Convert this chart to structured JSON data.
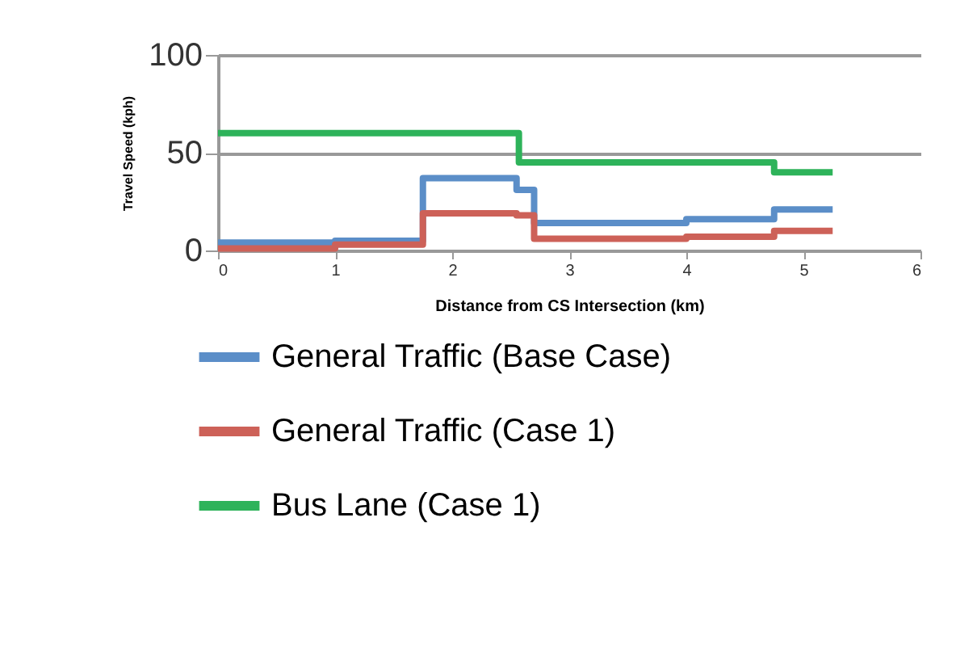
{
  "chart_data": {
    "type": "step",
    "xlabel": "Distance from CS Intersection (km)",
    "ylabel": "Travel Speed (kph)",
    "xlim": [
      0,
      6
    ],
    "xticks": [
      0,
      1,
      2,
      3,
      4,
      5,
      6
    ],
    "ylim": [
      0,
      100
    ],
    "yticks": [
      0,
      50,
      100
    ],
    "grid": "y",
    "legend": "bottom",
    "line_style": "solid",
    "marker": "none",
    "series": [
      {
        "name": "General Traffic (Base Case)",
        "color": "#5b8ec8",
        "x": [
          0,
          1,
          1.75,
          2.55,
          2.7,
          4,
          4.75,
          5.25
        ],
        "values": [
          4,
          5,
          37,
          31,
          14,
          16,
          21,
          21
        ]
      },
      {
        "name": "General Traffic (Case 1)",
        "color": "#cd6158",
        "x": [
          0,
          1,
          1.75,
          2.55,
          2.7,
          4,
          4.75,
          5.25
        ],
        "values": [
          1,
          3,
          19,
          18,
          6,
          7,
          10,
          10
        ]
      },
      {
        "name": "Bus Lane (Case 1)",
        "color": "#2eb35a",
        "x": [
          0,
          2.57,
          4.75,
          5.25
        ],
        "values": [
          60,
          45,
          40,
          40
        ]
      }
    ]
  }
}
